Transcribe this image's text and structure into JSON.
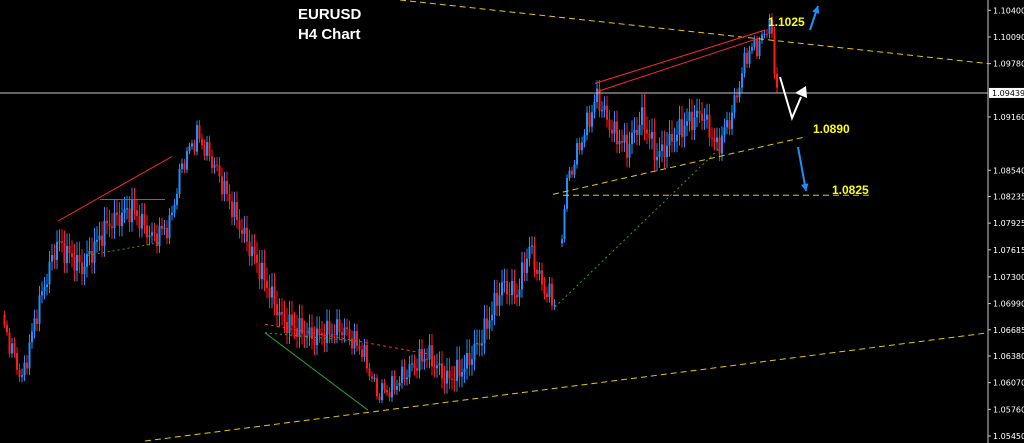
{
  "header": {
    "pair": "EURUSD",
    "timeframe": "H4 Chart"
  },
  "chart_data": {
    "type": "candlestick",
    "instrument": "EURUSD",
    "timeframe": "H4",
    "ylim": [
      1.0545,
      1.1045
    ],
    "y_ticks": [
      "1.10400",
      "1.10090",
      "1.09780",
      "1.09160",
      "1.08540",
      "1.08235",
      "1.07925",
      "1.07615",
      "1.07300",
      "1.06990",
      "1.06685",
      "1.06380",
      "1.06070",
      "1.05760",
      "1.05450"
    ],
    "current_price": "1.09439",
    "colors": {
      "bull": "#1e90ff",
      "bear": "#ff1a1a",
      "trendline": "#e6c800",
      "current_line": "#c8c8c8",
      "arrow_blue": "#1e90ff",
      "arrow_white": "#ffffff"
    },
    "levels": [
      {
        "label": "1.1025",
        "price": 1.1025
      },
      {
        "label": "1.0890",
        "price": 1.089
      },
      {
        "label": "1.0825",
        "price": 1.0825
      }
    ],
    "anchors": [
      [
        0,
        1.068
      ],
      [
        8,
        1.061
      ],
      [
        14,
        1.069
      ],
      [
        22,
        1.077
      ],
      [
        32,
        1.074
      ],
      [
        42,
        1.079
      ],
      [
        52,
        1.081
      ],
      [
        60,
        1.0775
      ],
      [
        67,
        1.079
      ],
      [
        72,
        1.086
      ],
      [
        78,
        1.0895
      ],
      [
        85,
        1.086
      ],
      [
        95,
        1.079
      ],
      [
        103,
        1.074
      ],
      [
        112,
        1.068
      ],
      [
        124,
        1.066
      ],
      [
        136,
        1.067
      ],
      [
        144,
        1.0645
      ],
      [
        150,
        1.0595
      ],
      [
        156,
        1.06
      ],
      [
        162,
        1.062
      ],
      [
        170,
        1.064
      ],
      [
        178,
        1.061
      ],
      [
        185,
        1.0625
      ],
      [
        192,
        1.066
      ],
      [
        200,
        1.072
      ],
      [
        206,
        1.071
      ],
      [
        211,
        1.0765
      ],
      [
        216,
        1.072
      ],
      [
        221,
        1.07
      ],
      [
        226,
        1.084
      ],
      [
        232,
        1.089
      ],
      [
        238,
        1.094
      ],
      [
        244,
        1.09
      ],
      [
        250,
        1.088
      ],
      [
        256,
        1.0915
      ],
      [
        262,
        1.087
      ],
      [
        268,
        1.089
      ],
      [
        274,
        1.091
      ],
      [
        280,
        1.092
      ],
      [
        286,
        1.088
      ],
      [
        292,
        1.092
      ],
      [
        298,
        1.099
      ],
      [
        304,
        1.1005
      ],
      [
        307,
        1.1028
      ],
      [
        310,
        1.095
      ]
    ],
    "gap_after_index": 221
  }
}
